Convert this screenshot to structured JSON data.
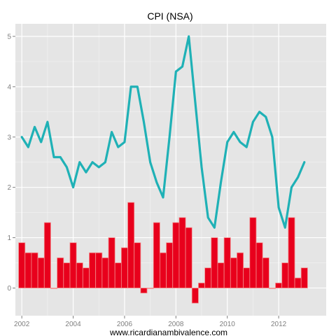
{
  "chart_data": {
    "type": "bar+line",
    "title": "CPI (NSA)",
    "caption": "www.ricardianambivalence.com",
    "xlabel": "",
    "ylabel": "",
    "xlim": [
      2001.75,
      2013.85
    ],
    "ylim": [
      -0.55,
      5.25
    ],
    "x_ticks": [
      2002,
      2004,
      2006,
      2008,
      2010,
      2012
    ],
    "x_tick_labels": [
      "2002",
      "2004",
      "2006",
      "2008",
      "2010",
      "2012"
    ],
    "y_ticks": [
      0,
      1,
      2,
      3,
      4,
      5
    ],
    "y_tick_labels": [
      "0",
      "1",
      "2",
      "3",
      "4",
      "5"
    ],
    "grid": true,
    "legend": "none",
    "colors": {
      "panel_background": "#e5e5e5",
      "grid_major": "#ffffff",
      "grid_minor": "#f2f2f2",
      "bar_fill": "#e8001c",
      "bar_border": "#f28c8c",
      "line": "#1fb1b6"
    },
    "quarters": [
      "2002Q1",
      "2002Q2",
      "2002Q3",
      "2002Q4",
      "2003Q1",
      "2003Q2",
      "2003Q3",
      "2003Q4",
      "2004Q1",
      "2004Q2",
      "2004Q3",
      "2004Q4",
      "2005Q1",
      "2005Q2",
      "2005Q3",
      "2005Q4",
      "2006Q1",
      "2006Q2",
      "2006Q3",
      "2006Q4",
      "2007Q1",
      "2007Q2",
      "2007Q3",
      "2007Q4",
      "2008Q1",
      "2008Q2",
      "2008Q3",
      "2008Q4",
      "2009Q1",
      "2009Q2",
      "2009Q3",
      "2009Q4",
      "2010Q1",
      "2010Q2",
      "2010Q3",
      "2010Q4",
      "2011Q1",
      "2011Q2",
      "2011Q3",
      "2011Q4",
      "2012Q1",
      "2012Q2",
      "2012Q3",
      "2012Q4",
      "2013Q1"
    ],
    "series": [
      {
        "type": "bar",
        "values": [
          0.9,
          0.7,
          0.7,
          0.6,
          1.3,
          0.0,
          0.6,
          0.5,
          0.9,
          0.5,
          0.4,
          0.7,
          0.7,
          0.6,
          1.0,
          0.5,
          0.8,
          1.7,
          0.9,
          -0.1,
          0.0,
          1.3,
          0.7,
          0.9,
          1.3,
          1.4,
          1.2,
          -0.3,
          0.1,
          0.4,
          1.0,
          0.5,
          1.0,
          0.6,
          0.7,
          0.4,
          1.4,
          0.9,
          0.6,
          0.0,
          0.1,
          0.5,
          1.4,
          0.2,
          0.4
        ]
      },
      {
        "type": "line",
        "values": [
          3.0,
          2.8,
          3.2,
          2.9,
          3.3,
          2.6,
          2.6,
          2.4,
          2.0,
          2.5,
          2.3,
          2.5,
          2.4,
          2.5,
          3.1,
          2.8,
          2.9,
          4.0,
          4.0,
          3.3,
          2.5,
          2.1,
          1.8,
          3.0,
          4.3,
          4.4,
          5.0,
          3.7,
          2.4,
          1.4,
          1.2,
          2.1,
          2.9,
          3.1,
          2.9,
          2.8,
          3.3,
          3.5,
          3.4,
          3.0,
          1.6,
          1.2,
          2.0,
          2.2,
          2.5
        ]
      }
    ]
  }
}
